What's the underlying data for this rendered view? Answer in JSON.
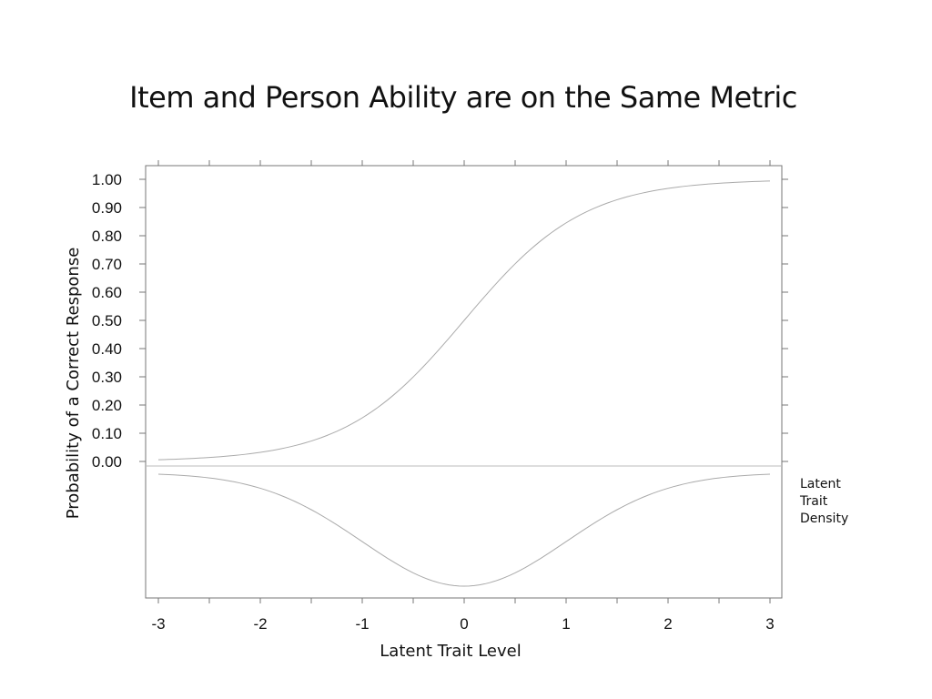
{
  "chart_data": {
    "type": "line",
    "title": "Item and Person Ability are on the Same Metric",
    "xlabel": "Latent Trait Level",
    "ylabel": "Probability of a Correct Response",
    "xlim": [
      -3,
      3
    ],
    "ylim": [
      0,
      1
    ],
    "x_ticks": [
      "-3",
      "-2",
      "-1",
      "0",
      "1",
      "2",
      "3"
    ],
    "y_ticks": [
      "0.00",
      "0.10",
      "0.20",
      "0.30",
      "0.40",
      "0.50",
      "0.60",
      "0.70",
      "0.80",
      "0.90",
      "1.00"
    ],
    "grid": false,
    "series": [
      {
        "x": [
          -3,
          -2.5,
          -2,
          -1.5,
          -1,
          -0.5,
          0,
          0.5,
          1,
          1.5,
          2,
          2.5,
          3
        ],
        "values": [
          0.005,
          0.01,
          0.03,
          0.07,
          0.16,
          0.3,
          0.5,
          0.7,
          0.84,
          0.93,
          0.97,
          0.99,
          0.995
        ]
      }
    ],
    "density": {
      "label": "Latent Trait Density",
      "label_lines": [
        "Latent",
        "Trait",
        "Density"
      ],
      "x": [
        -3,
        -2.5,
        -2,
        -1.5,
        -1,
        -0.5,
        0,
        0.5,
        1,
        1.5,
        2,
        2.5,
        3
      ],
      "values": [
        0.004,
        0.018,
        0.054,
        0.13,
        0.242,
        0.352,
        0.399,
        0.352,
        0.242,
        0.13,
        0.054,
        0.018,
        0.004
      ]
    }
  },
  "colors": {
    "curve": "#aaaaaa",
    "axis": "#777777",
    "text": "#111111"
  }
}
